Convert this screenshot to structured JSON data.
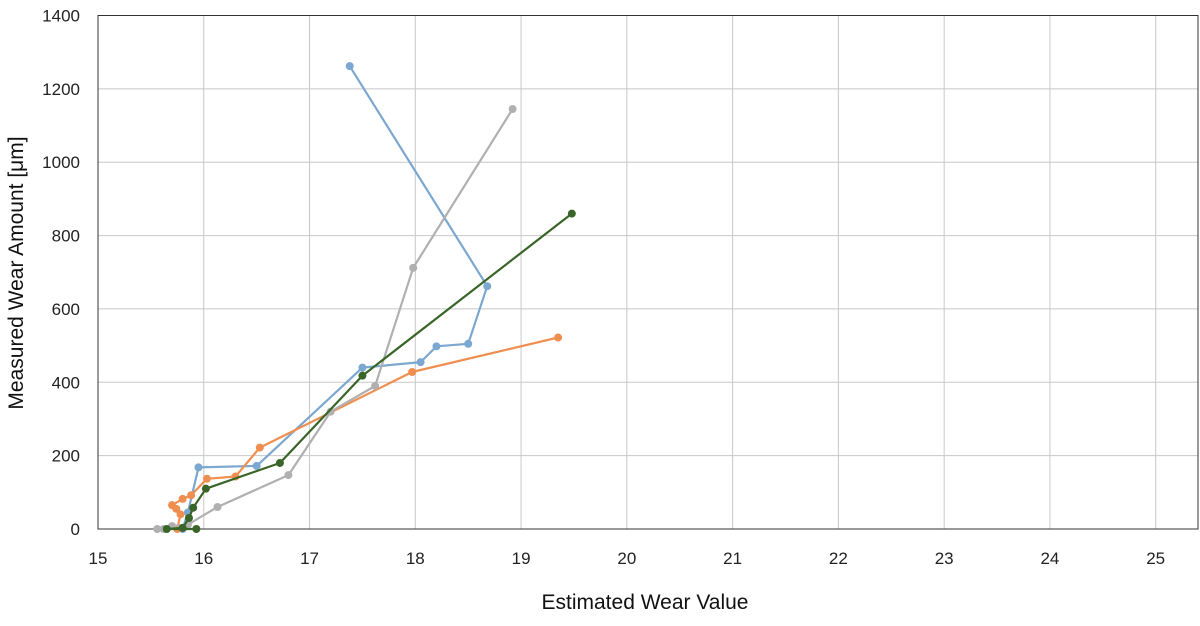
{
  "chart_data": {
    "type": "scatter",
    "xlabel": "Estimated Wear Value",
    "ylabel": "Measured Wear Amount [μm]",
    "xlim": [
      15,
      25.4
    ],
    "ylim": [
      0,
      1400
    ],
    "xticks": [
      15,
      16,
      17,
      18,
      19,
      20,
      21,
      22,
      23,
      24,
      25
    ],
    "yticks": [
      0,
      200,
      400,
      600,
      800,
      1000,
      1200,
      1400
    ],
    "grid": true,
    "series": [
      {
        "color": "#7ba7d1",
        "points": [
          [
            15.8,
            0
          ],
          [
            15.85,
            45
          ],
          [
            15.95,
            168
          ],
          [
            16.5,
            172
          ],
          [
            17.5,
            440
          ],
          [
            18.05,
            455
          ],
          [
            18.2,
            498
          ],
          [
            18.5,
            505
          ],
          [
            18.68,
            662
          ],
          [
            17.38,
            1262
          ]
        ]
      },
      {
        "color": "#ef8f4f",
        "points": [
          [
            15.75,
            0
          ],
          [
            15.78,
            40
          ],
          [
            15.74,
            55
          ],
          [
            15.7,
            65
          ],
          [
            15.8,
            82
          ],
          [
            15.88,
            92
          ],
          [
            16.03,
            137
          ],
          [
            16.3,
            143
          ],
          [
            16.53,
            222
          ],
          [
            17.97,
            428
          ],
          [
            19.35,
            522
          ]
        ]
      },
      {
        "color": "#b0b0b0",
        "points": [
          [
            15.56,
            0
          ],
          [
            15.62,
            0
          ],
          [
            15.7,
            8
          ],
          [
            15.85,
            12
          ],
          [
            16.13,
            60
          ],
          [
            16.8,
            147
          ],
          [
            17.2,
            320
          ],
          [
            17.62,
            390
          ],
          [
            17.98,
            712
          ],
          [
            18.92,
            1145
          ]
        ]
      },
      {
        "color": "#3a6528",
        "points": [
          [
            15.93,
            0
          ],
          [
            15.65,
            0
          ],
          [
            15.8,
            3
          ],
          [
            15.86,
            30
          ],
          [
            15.9,
            58
          ],
          [
            16.02,
            110
          ],
          [
            16.72,
            180
          ],
          [
            17.5,
            418
          ],
          [
            19.48,
            860
          ]
        ]
      }
    ]
  }
}
